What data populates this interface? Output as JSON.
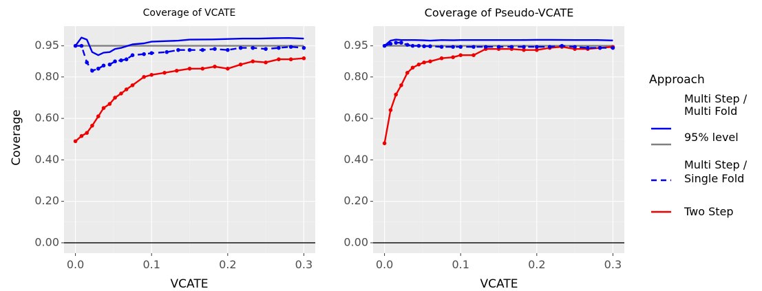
{
  "legend": {
    "title": "Approach",
    "entries": [
      {
        "label_lines": [
          "Multi Step /",
          "Multi Fold"
        ],
        "color": "#0000ee",
        "dash": "solid"
      },
      {
        "label_lines": [
          "95% level"
        ],
        "color": "#808080",
        "dash": "solid"
      },
      {
        "label_lines": [
          "Multi Step /",
          "Single Fold"
        ],
        "color": "#0000ee",
        "dash": "dashed"
      },
      {
        "label_lines": [
          "Two Step"
        ],
        "color": "#ee0000",
        "dash": "solid"
      }
    ]
  },
  "shared_axes": {
    "ylabel": "Coverage",
    "xlabel": "VCATE",
    "x_ticks": [
      "0.0",
      "0.1",
      "0.2",
      "0.3"
    ],
    "y_ticks": [
      "0.00",
      "0.20",
      "0.40",
      "0.60",
      "0.80",
      "0.95"
    ],
    "y_tick_values": [
      0.0,
      0.2,
      0.4,
      0.6,
      0.8,
      0.95
    ],
    "x_tick_values": [
      0.0,
      0.1,
      0.2,
      0.3
    ],
    "xlim": [
      -0.015,
      0.315
    ],
    "ylim": [
      -0.05,
      1.045
    ]
  },
  "chart_data": [
    {
      "type": "line",
      "title": "Coverage of VCATE",
      "xlabel": "VCATE",
      "ylabel": "Coverage",
      "series": [
        {
          "name": "Multi Step / Multi Fold",
          "color": "#0000ee",
          "dash": "solid",
          "markers": false,
          "x": [
            0.0,
            0.008,
            0.015,
            0.022,
            0.03,
            0.037,
            0.045,
            0.052,
            0.06,
            0.067,
            0.075,
            0.09,
            0.1,
            0.12,
            0.135,
            0.15,
            0.18,
            0.2,
            0.22,
            0.24,
            0.26,
            0.28,
            0.3
          ],
          "y": [
            0.95,
            0.99,
            0.98,
            0.92,
            0.905,
            0.917,
            0.92,
            0.935,
            0.94,
            0.948,
            0.957,
            0.962,
            0.97,
            0.973,
            0.975,
            0.98,
            0.981,
            0.983,
            0.985,
            0.985,
            0.987,
            0.988,
            0.985
          ]
        },
        {
          "name": "95% level",
          "color": "#808080",
          "dash": "solid",
          "markers": false,
          "x": [
            0.0,
            0.3
          ],
          "y": [
            0.95,
            0.95
          ]
        },
        {
          "name": "Multi Step / Single Fold",
          "color": "#0000ee",
          "dash": "dashed",
          "markers": true,
          "x": [
            0.0,
            0.008,
            0.015,
            0.022,
            0.03,
            0.037,
            0.045,
            0.052,
            0.06,
            0.067,
            0.075,
            0.09,
            0.1,
            0.12,
            0.135,
            0.15,
            0.167,
            0.183,
            0.2,
            0.217,
            0.233,
            0.25,
            0.267,
            0.283,
            0.3
          ],
          "y": [
            0.95,
            0.95,
            0.87,
            0.83,
            0.84,
            0.855,
            0.86,
            0.875,
            0.88,
            0.885,
            0.905,
            0.91,
            0.915,
            0.92,
            0.93,
            0.93,
            0.93,
            0.935,
            0.93,
            0.94,
            0.94,
            0.935,
            0.94,
            0.945,
            0.94
          ]
        },
        {
          "name": "Two Step",
          "color": "#ee0000",
          "dash": "solid",
          "markers": true,
          "x": [
            0.0,
            0.008,
            0.015,
            0.022,
            0.03,
            0.037,
            0.045,
            0.052,
            0.06,
            0.067,
            0.075,
            0.09,
            0.1,
            0.117,
            0.133,
            0.15,
            0.167,
            0.183,
            0.2,
            0.217,
            0.233,
            0.25,
            0.267,
            0.283,
            0.3
          ],
          "y": [
            0.49,
            0.515,
            0.53,
            0.565,
            0.61,
            0.65,
            0.67,
            0.7,
            0.72,
            0.74,
            0.76,
            0.8,
            0.81,
            0.82,
            0.83,
            0.84,
            0.84,
            0.85,
            0.84,
            0.86,
            0.875,
            0.87,
            0.885,
            0.885,
            0.89
          ]
        }
      ]
    },
    {
      "type": "line",
      "title": "Coverage of Pseudo-VCATE",
      "xlabel": "VCATE",
      "ylabel": "",
      "series": [
        {
          "name": "Multi Step / Multi Fold",
          "color": "#0000ee",
          "dash": "solid",
          "markers": false,
          "x": [
            0.0,
            0.008,
            0.015,
            0.022,
            0.03,
            0.04,
            0.05,
            0.06,
            0.075,
            0.09,
            0.1,
            0.12,
            0.15,
            0.18,
            0.2,
            0.22,
            0.25,
            0.28,
            0.3
          ],
          "y": [
            0.95,
            0.975,
            0.98,
            0.978,
            0.978,
            0.978,
            0.977,
            0.975,
            0.978,
            0.977,
            0.978,
            0.978,
            0.978,
            0.978,
            0.979,
            0.979,
            0.978,
            0.978,
            0.976
          ]
        },
        {
          "name": "95% level",
          "color": "#808080",
          "dash": "solid",
          "markers": false,
          "x": [
            0.0,
            0.3
          ],
          "y": [
            0.95,
            0.95
          ]
        },
        {
          "name": "Multi Step / Single Fold",
          "color": "#0000ee",
          "dash": "dashed",
          "markers": true,
          "x": [
            0.0,
            0.008,
            0.015,
            0.022,
            0.03,
            0.037,
            0.045,
            0.052,
            0.06,
            0.075,
            0.09,
            0.1,
            0.117,
            0.133,
            0.15,
            0.167,
            0.183,
            0.2,
            0.217,
            0.233,
            0.25,
            0.267,
            0.283,
            0.3
          ],
          "y": [
            0.95,
            0.96,
            0.965,
            0.965,
            0.955,
            0.95,
            0.95,
            0.948,
            0.948,
            0.945,
            0.945,
            0.945,
            0.945,
            0.945,
            0.945,
            0.945,
            0.945,
            0.945,
            0.945,
            0.95,
            0.945,
            0.94,
            0.94,
            0.94
          ]
        },
        {
          "name": "Two Step",
          "color": "#ee0000",
          "dash": "solid",
          "markers": true,
          "x": [
            0.0,
            0.008,
            0.015,
            0.022,
            0.03,
            0.037,
            0.045,
            0.052,
            0.06,
            0.075,
            0.09,
            0.1,
            0.117,
            0.133,
            0.15,
            0.167,
            0.183,
            0.2,
            0.217,
            0.233,
            0.25,
            0.267,
            0.283,
            0.3
          ],
          "y": [
            0.48,
            0.64,
            0.715,
            0.76,
            0.82,
            0.845,
            0.86,
            0.87,
            0.875,
            0.89,
            0.895,
            0.905,
            0.905,
            0.935,
            0.935,
            0.935,
            0.93,
            0.93,
            0.94,
            0.945,
            0.935,
            0.935,
            0.94,
            0.945
          ]
        }
      ]
    }
  ]
}
